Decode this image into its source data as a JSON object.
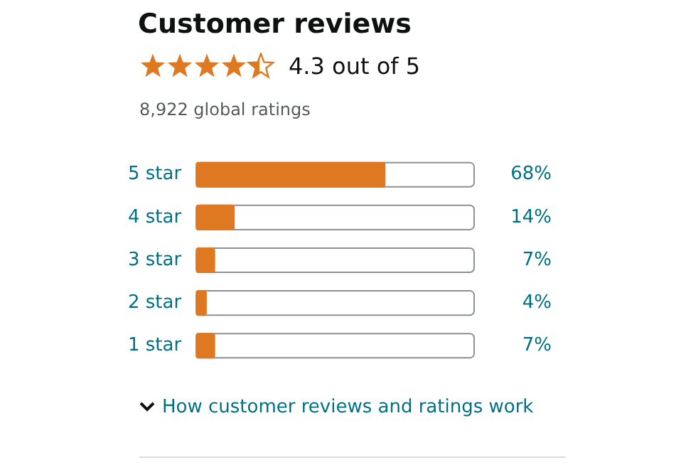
{
  "chart_data": {
    "type": "bar",
    "orientation": "horizontal",
    "title": "Customer reviews",
    "annotations": [
      "4.3 out of 5",
      "8,922 global ratings",
      "How customer reviews and ratings work"
    ],
    "categories": [
      "5 star",
      "4 star",
      "3 star",
      "2 star",
      "1 star"
    ],
    "values": [
      68,
      14,
      7,
      4,
      7
    ],
    "color": "#de7921",
    "value_labels": [
      "68%",
      "14%",
      "7%",
      "4%",
      "7%"
    ],
    "tick_labels": "y",
    "legend": false
  }
}
